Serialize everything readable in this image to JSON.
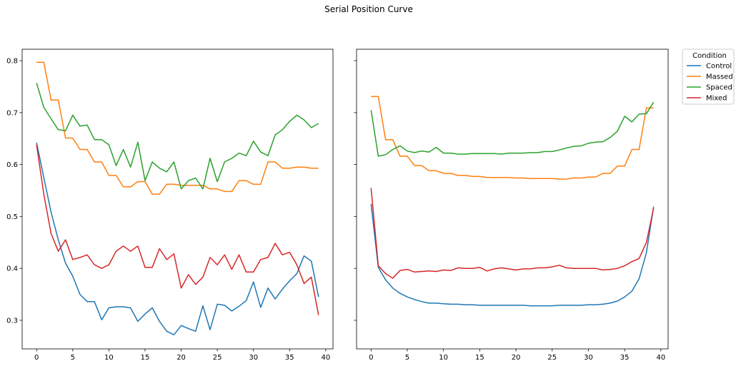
{
  "chart_data": {
    "title": "Serial Position Curve",
    "legend": {
      "title": "Condition",
      "placement": "outside-top-right"
    },
    "series_colors": {
      "Control": "#1f77b4",
      "Massed": "#ff7f0e",
      "Spaced": "#2ca02c",
      "Mixed": "#d62728"
    },
    "panels": [
      {
        "type": "line",
        "x": [
          0,
          1,
          2,
          3,
          4,
          5,
          6,
          7,
          8,
          9,
          10,
          11,
          12,
          13,
          14,
          15,
          16,
          17,
          18,
          19,
          20,
          21,
          22,
          23,
          24,
          25,
          26,
          27,
          28,
          29,
          30,
          31,
          32,
          33,
          34,
          35,
          36,
          37,
          38,
          39
        ],
        "xlim": [
          -2,
          41
        ],
        "xticks": [
          0,
          5,
          10,
          15,
          20,
          25,
          30,
          35,
          40
        ],
        "ylim": [
          0.245,
          0.822
        ],
        "yticks": [
          0.3,
          0.4,
          0.5,
          0.6,
          0.7,
          0.8
        ],
        "ytick_labels": [
          "0.3",
          "0.4",
          "0.5",
          "0.6",
          "0.7",
          "0.8"
        ],
        "series": [
          {
            "name": "Control",
            "values": [
              0.642,
              0.575,
              0.508,
              0.455,
              0.41,
              0.385,
              0.35,
              0.336,
              0.336,
              0.301,
              0.324,
              0.326,
              0.326,
              0.324,
              0.298,
              0.312,
              0.324,
              0.298,
              0.279,
              0.272,
              0.29,
              0.284,
              0.279,
              0.328,
              0.282,
              0.331,
              0.329,
              0.318,
              0.327,
              0.338,
              0.374,
              0.325,
              0.362,
              0.341,
              0.36,
              0.376,
              0.39,
              0.424,
              0.414,
              0.345
            ]
          },
          {
            "name": "Massed",
            "values": [
              0.797,
              0.797,
              0.724,
              0.724,
              0.651,
              0.651,
              0.629,
              0.629,
              0.605,
              0.605,
              0.579,
              0.579,
              0.557,
              0.557,
              0.567,
              0.567,
              0.543,
              0.543,
              0.562,
              0.562,
              0.56,
              0.56,
              0.56,
              0.56,
              0.553,
              0.553,
              0.548,
              0.548,
              0.569,
              0.569,
              0.562,
              0.562,
              0.605,
              0.605,
              0.593,
              0.593,
              0.595,
              0.595,
              0.593,
              0.593
            ]
          },
          {
            "name": "Spaced",
            "values": [
              0.757,
              0.71,
              0.688,
              0.667,
              0.665,
              0.695,
              0.674,
              0.676,
              0.648,
              0.648,
              0.638,
              0.598,
              0.629,
              0.595,
              0.643,
              0.569,
              0.605,
              0.593,
              0.586,
              0.605,
              0.553,
              0.569,
              0.574,
              0.553,
              0.612,
              0.567,
              0.605,
              0.612,
              0.622,
              0.617,
              0.645,
              0.624,
              0.617,
              0.657,
              0.667,
              0.683,
              0.695,
              0.686,
              0.671,
              0.679
            ]
          },
          {
            "name": "Mixed",
            "values": [
              0.638,
              0.543,
              0.467,
              0.433,
              0.455,
              0.417,
              0.421,
              0.426,
              0.407,
              0.4,
              0.407,
              0.433,
              0.443,
              0.433,
              0.443,
              0.402,
              0.402,
              0.438,
              0.417,
              0.428,
              0.362,
              0.388,
              0.369,
              0.383,
              0.421,
              0.407,
              0.426,
              0.398,
              0.426,
              0.393,
              0.393,
              0.417,
              0.421,
              0.448,
              0.426,
              0.431,
              0.407,
              0.371,
              0.383,
              0.31
            ]
          }
        ]
      },
      {
        "type": "line",
        "x": [
          0,
          1,
          2,
          3,
          4,
          5,
          6,
          7,
          8,
          9,
          10,
          11,
          12,
          13,
          14,
          15,
          16,
          17,
          18,
          19,
          20,
          21,
          22,
          23,
          24,
          25,
          26,
          27,
          28,
          29,
          30,
          31,
          32,
          33,
          34,
          35,
          36,
          37,
          38,
          39
        ],
        "xlim": [
          -2,
          41
        ],
        "xticks": [
          0,
          5,
          10,
          15,
          20,
          25,
          30,
          35,
          40
        ],
        "ylim": [
          0.245,
          0.822
        ],
        "yticks": [
          0.3,
          0.4,
          0.5,
          0.6,
          0.7,
          0.8
        ],
        "ytick_labels": [
          "",
          "",
          "",
          "",
          "",
          ""
        ],
        "series": [
          {
            "name": "Control",
            "values": [
              0.524,
              0.402,
              0.378,
              0.362,
              0.352,
              0.345,
              0.34,
              0.336,
              0.333,
              0.333,
              0.332,
              0.331,
              0.331,
              0.33,
              0.33,
              0.329,
              0.329,
              0.329,
              0.329,
              0.329,
              0.329,
              0.329,
              0.328,
              0.328,
              0.328,
              0.328,
              0.329,
              0.329,
              0.329,
              0.329,
              0.33,
              0.33,
              0.331,
              0.333,
              0.337,
              0.345,
              0.356,
              0.38,
              0.43,
              0.519
            ]
          },
          {
            "name": "Massed",
            "values": [
              0.731,
              0.731,
              0.648,
              0.648,
              0.616,
              0.616,
              0.598,
              0.598,
              0.588,
              0.588,
              0.583,
              0.583,
              0.579,
              0.579,
              0.577,
              0.577,
              0.575,
              0.575,
              0.575,
              0.575,
              0.574,
              0.574,
              0.573,
              0.573,
              0.573,
              0.573,
              0.572,
              0.572,
              0.574,
              0.574,
              0.576,
              0.576,
              0.583,
              0.583,
              0.597,
              0.597,
              0.629,
              0.629,
              0.709,
              0.709
            ]
          },
          {
            "name": "Spaced",
            "values": [
              0.705,
              0.616,
              0.619,
              0.629,
              0.636,
              0.626,
              0.623,
              0.626,
              0.624,
              0.633,
              0.622,
              0.622,
              0.62,
              0.62,
              0.621,
              0.621,
              0.621,
              0.621,
              0.62,
              0.622,
              0.622,
              0.622,
              0.623,
              0.623,
              0.625,
              0.625,
              0.628,
              0.632,
              0.635,
              0.636,
              0.641,
              0.643,
              0.644,
              0.652,
              0.664,
              0.693,
              0.682,
              0.697,
              0.698,
              0.72
            ]
          },
          {
            "name": "Mixed",
            "values": [
              0.555,
              0.405,
              0.39,
              0.381,
              0.396,
              0.398,
              0.393,
              0.394,
              0.395,
              0.394,
              0.397,
              0.396,
              0.401,
              0.4,
              0.4,
              0.402,
              0.395,
              0.399,
              0.401,
              0.399,
              0.397,
              0.399,
              0.399,
              0.401,
              0.401,
              0.403,
              0.406,
              0.401,
              0.4,
              0.4,
              0.4,
              0.4,
              0.397,
              0.398,
              0.4,
              0.405,
              0.413,
              0.419,
              0.45,
              0.516
            ]
          }
        ]
      }
    ]
  }
}
